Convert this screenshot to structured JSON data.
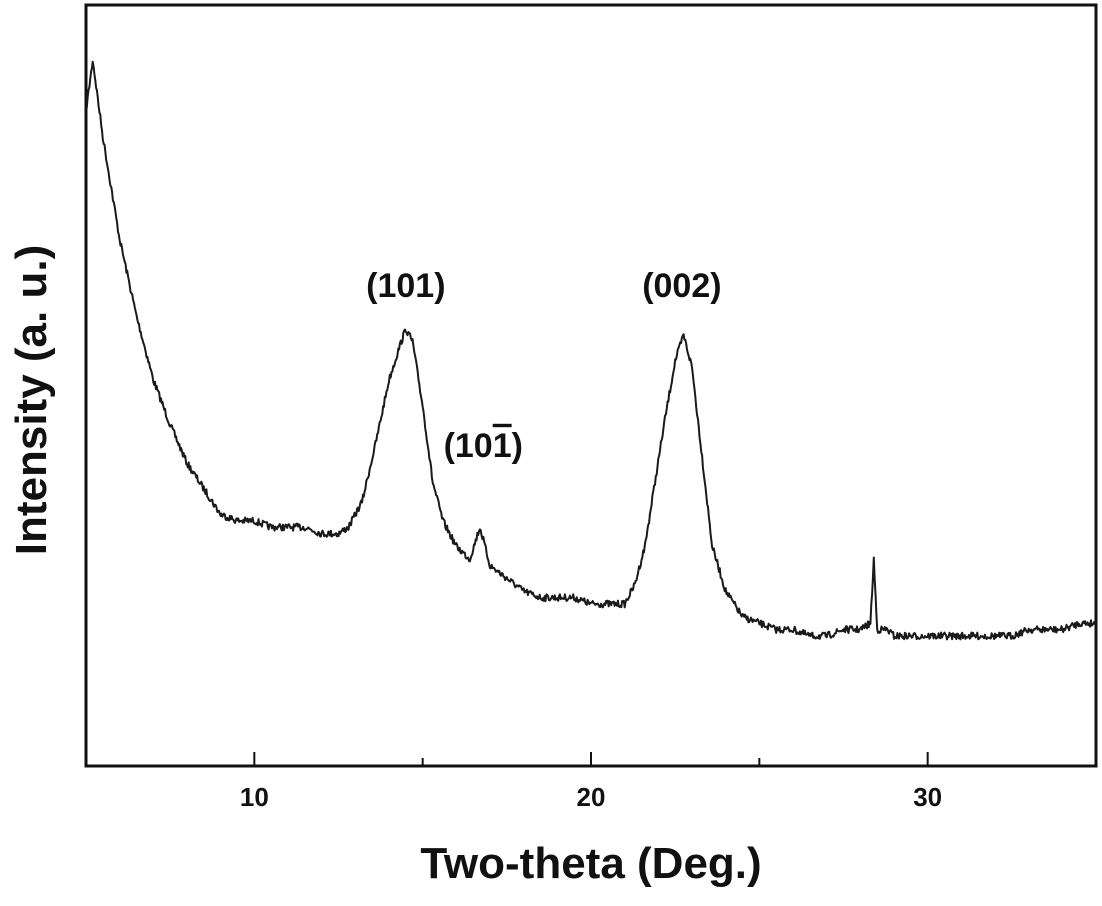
{
  "chart_data": {
    "type": "line",
    "title": "",
    "xlabel": "Two-theta (Deg.)",
    "ylabel": "Intensity (a. u.)",
    "xlim": [
      5,
      35
    ],
    "ylim": [
      0,
      100
    ],
    "x_ticks": [
      10,
      20,
      30
    ],
    "x_minor_ticks": [
      5,
      15,
      25,
      35
    ],
    "y_ticks": [],
    "grid": false,
    "legend": "none",
    "line_color": "#1a1a1a",
    "series": [
      {
        "x": [
          5.0,
          5.2,
          5.5,
          6.0,
          6.5,
          7.0,
          7.5,
          8.0,
          8.5,
          9.0,
          9.5,
          10.0,
          10.5,
          11.0,
          11.5,
          12.0,
          12.5,
          12.8,
          13.2,
          13.6,
          14.0,
          14.3,
          14.5,
          14.7,
          15.0,
          15.3,
          15.6,
          16.0,
          16.4,
          16.7,
          17.0,
          17.5,
          18.0,
          18.5,
          19.0,
          19.5,
          20.0,
          20.5,
          21.0,
          21.3,
          21.6,
          21.9,
          22.2,
          22.5,
          22.75,
          23.0,
          23.3,
          23.6,
          24.0,
          24.5,
          25.0,
          25.5,
          26.0,
          26.5,
          27.0,
          27.5,
          28.0,
          28.3,
          28.4,
          28.5,
          28.8,
          29.0,
          29.5,
          30.0,
          30.5,
          31.0,
          31.5,
          32.0,
          32.5,
          33.0,
          33.5,
          34.0,
          34.5,
          35.0
        ],
        "y": [
          92,
          100,
          88,
          72,
          60,
          50,
          43,
          37,
          33,
          29,
          28,
          28,
          27,
          27,
          27,
          26,
          26,
          27,
          31,
          40,
          50,
          55,
          58,
          56,
          46,
          34,
          28,
          24,
          22,
          27,
          21,
          19,
          17,
          16,
          16,
          16,
          15,
          15,
          15,
          18,
          24,
          34,
          44,
          53,
          57,
          52,
          38,
          24,
          17,
          13,
          12,
          11,
          11,
          10,
          10,
          11,
          11,
          12,
          22,
          11,
          11,
          10,
          10,
          10,
          10,
          10,
          10,
          10,
          10,
          11,
          11,
          11,
          12,
          12
        ]
      }
    ],
    "annotations": [
      {
        "text": "(101)",
        "x": 14.5,
        "y": 63
      },
      {
        "text": "(10",
        "bar_digit": "1",
        "close": ")",
        "x": 16.8,
        "y": 38
      },
      {
        "text": "(002)",
        "x": 22.7,
        "y": 63
      }
    ]
  }
}
